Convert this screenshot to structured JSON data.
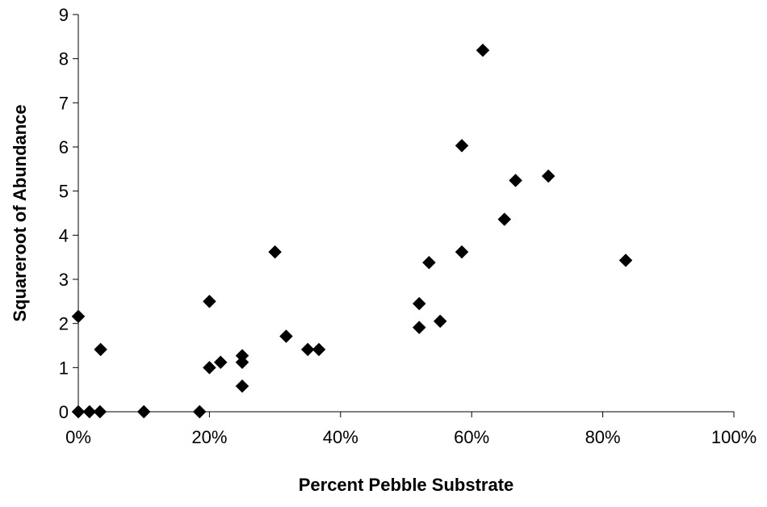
{
  "chart_data": {
    "type": "scatter",
    "title": "",
    "xlabel": "Percent Pebble Substrate",
    "ylabel": "Squareroot of Abundance",
    "xlim": [
      0,
      1
    ],
    "ylim": [
      0,
      9
    ],
    "x_ticks": [
      "0%",
      "20%",
      "40%",
      "60%",
      "80%",
      "100%"
    ],
    "y_ticks": [
      "0",
      "1",
      "2",
      "3",
      "4",
      "5",
      "6",
      "7",
      "8",
      "9"
    ],
    "grid": false,
    "legend": "none",
    "marker": "diamond",
    "marker_color": "#000000",
    "points": [
      {
        "x": 0.0,
        "y": 0
      },
      {
        "x": 0.0,
        "y": 2.16
      },
      {
        "x": 0.017,
        "y": 0
      },
      {
        "x": 0.033,
        "y": 0
      },
      {
        "x": 0.034,
        "y": 1.41
      },
      {
        "x": 0.1,
        "y": 0
      },
      {
        "x": 0.185,
        "y": 0
      },
      {
        "x": 0.2,
        "y": 1.0
      },
      {
        "x": 0.2,
        "y": 2.5
      },
      {
        "x": 0.217,
        "y": 1.12
      },
      {
        "x": 0.25,
        "y": 0.58
      },
      {
        "x": 0.25,
        "y": 1.12
      },
      {
        "x": 0.25,
        "y": 1.27
      },
      {
        "x": 0.3,
        "y": 3.62
      },
      {
        "x": 0.317,
        "y": 1.71
      },
      {
        "x": 0.35,
        "y": 1.41
      },
      {
        "x": 0.367,
        "y": 1.41
      },
      {
        "x": 0.52,
        "y": 1.91
      },
      {
        "x": 0.52,
        "y": 2.45
      },
      {
        "x": 0.535,
        "y": 3.38
      },
      {
        "x": 0.552,
        "y": 2.05
      },
      {
        "x": 0.585,
        "y": 3.62
      },
      {
        "x": 0.585,
        "y": 6.03
      },
      {
        "x": 0.617,
        "y": 8.19
      },
      {
        "x": 0.65,
        "y": 4.36
      },
      {
        "x": 0.667,
        "y": 5.24
      },
      {
        "x": 0.717,
        "y": 5.34
      },
      {
        "x": 0.835,
        "y": 3.43
      }
    ]
  }
}
